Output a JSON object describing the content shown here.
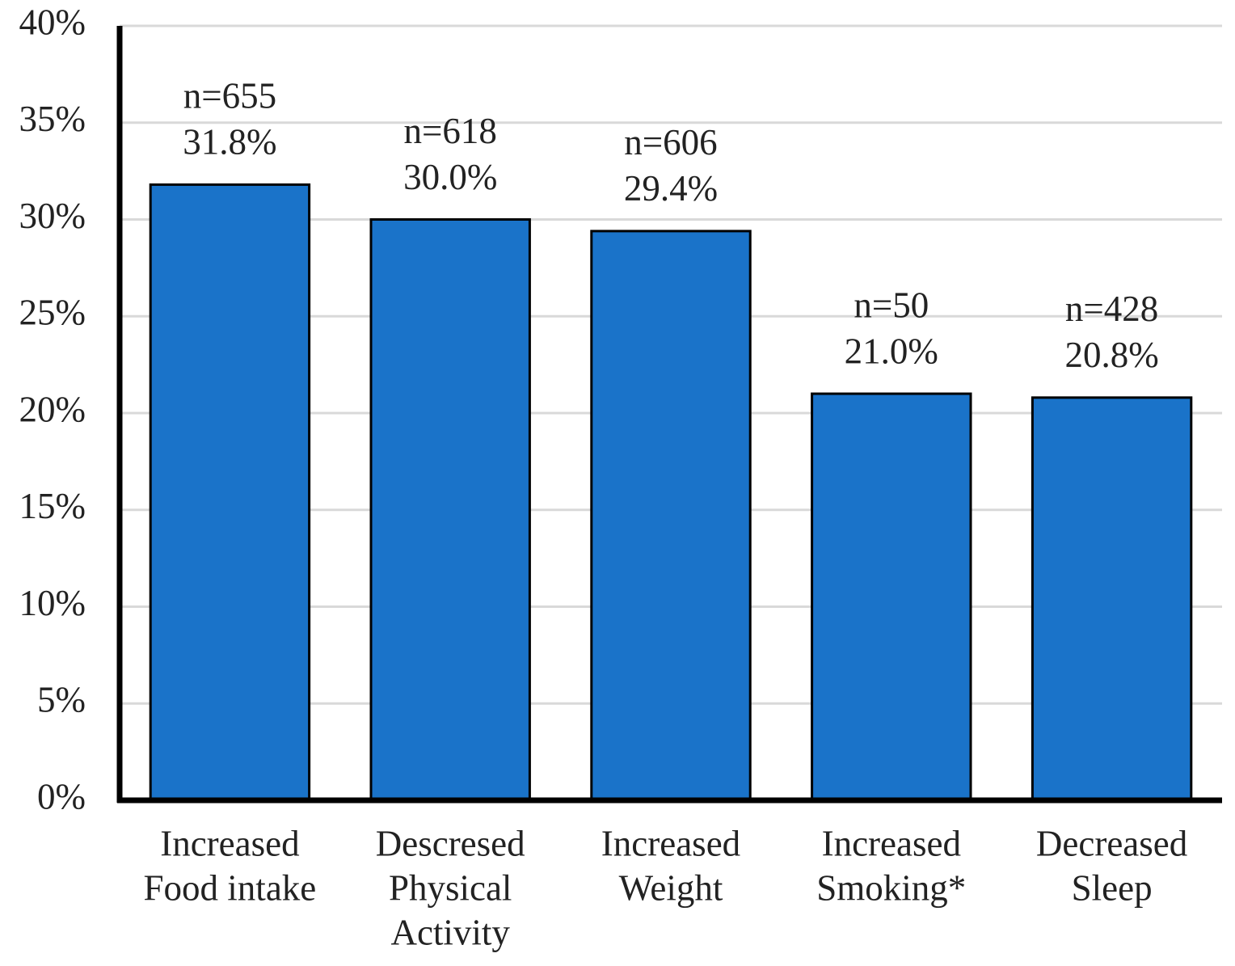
{
  "chart_data": {
    "type": "bar",
    "categories": [
      [
        "Increased",
        "Food intake"
      ],
      [
        "Descresed",
        "Physical",
        "Activity"
      ],
      [
        "Increased",
        "Weight"
      ],
      [
        "Increased",
        "Smoking*"
      ],
      [
        "Decreased",
        "Sleep"
      ]
    ],
    "values": [
      31.8,
      30.0,
      29.4,
      21.0,
      20.8
    ],
    "value_labels": [
      "31.8%",
      "30.0%",
      "29.4%",
      "21.0%",
      "20.8%"
    ],
    "n_labels": [
      "n=655",
      "n=618",
      "n=606",
      "n=50",
      "n=428"
    ],
    "color": "#1a73c9",
    "ylim": [
      0,
      40
    ],
    "yticks": [
      {
        "value": 0,
        "label": "0%"
      },
      {
        "value": 5,
        "label": "5%"
      },
      {
        "value": 10,
        "label": "10%"
      },
      {
        "value": 15,
        "label": "15%"
      },
      {
        "value": 20,
        "label": "20%"
      },
      {
        "value": 25,
        "label": "25%"
      },
      {
        "value": 30,
        "label": "30%"
      },
      {
        "value": 35,
        "label": "35%"
      },
      {
        "value": 40,
        "label": "40%"
      }
    ],
    "grid": true
  }
}
